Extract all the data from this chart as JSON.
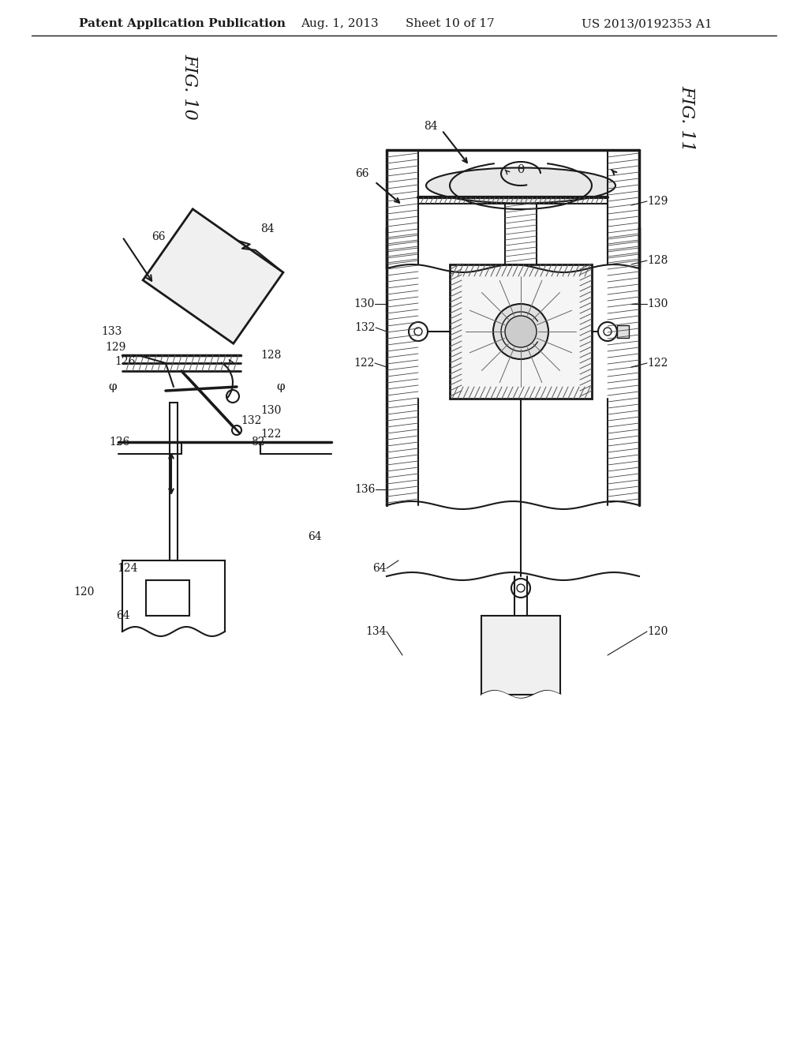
{
  "background_color": "#ffffff",
  "header_text": "Patent Application Publication",
  "header_date": "Aug. 1, 2013",
  "header_sheet": "Sheet 10 of 17",
  "header_patent": "US 2013/0192353 A1",
  "fig10_label": "FIG. 10",
  "fig11_label": "FIG. 11",
  "line_color": "#1a1a1a",
  "label_color": "#1a1a1a",
  "font_size_header": 11,
  "font_size_fig": 16,
  "font_size_label": 10
}
